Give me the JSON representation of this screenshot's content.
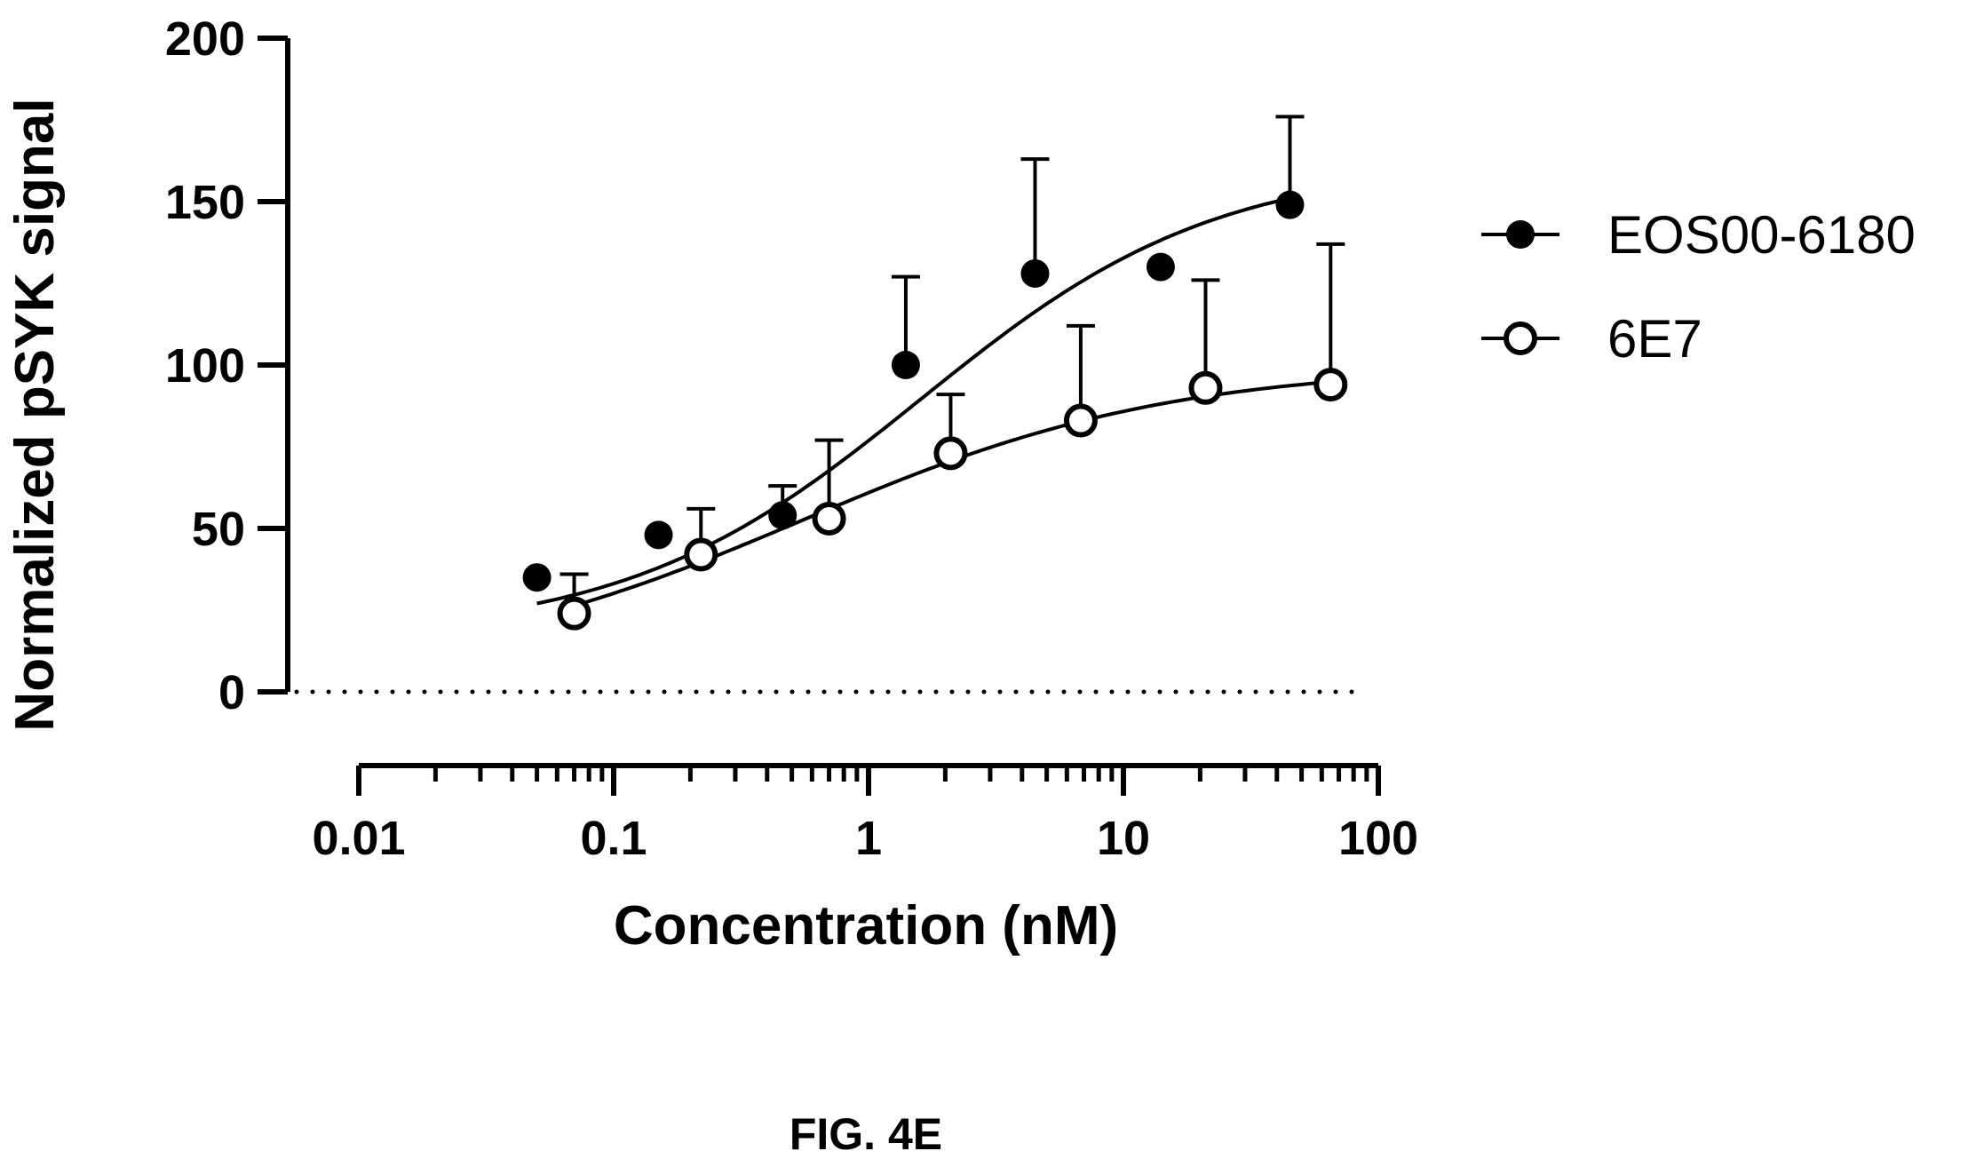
{
  "caption": "FIG. 4E",
  "chart_data": {
    "type": "scatter",
    "xscale": "log",
    "xlabel": "Concentration (nM)",
    "ylabel": "Normalized pSYK signal",
    "xlim": [
      0.01,
      100
    ],
    "ylim": [
      0,
      200
    ],
    "xticks": [
      {
        "value": 0.01,
        "label": "0.01"
      },
      {
        "value": 0.1,
        "label": "0.1"
      },
      {
        "value": 1,
        "label": "1"
      },
      {
        "value": 10,
        "label": "10"
      },
      {
        "value": 100,
        "label": "100"
      }
    ],
    "yticks": [
      {
        "value": 0,
        "label": "0"
      },
      {
        "value": 50,
        "label": "50"
      },
      {
        "value": 100,
        "label": "100"
      },
      {
        "value": 150,
        "label": "150"
      },
      {
        "value": 200,
        "label": "200"
      }
    ],
    "reference_line": {
      "y": 0,
      "style": "dotted"
    },
    "legend_position": "right",
    "series": [
      {
        "name": "EOS00-6180",
        "marker": "filled-circle",
        "color": "#000000",
        "x": [
          0.05,
          0.15,
          0.46,
          1.4,
          4.5,
          14,
          45
        ],
        "y": [
          35,
          48,
          54,
          100,
          128,
          130,
          149
        ],
        "error_upper": [
          null,
          null,
          63,
          127,
          163,
          null,
          176
        ],
        "fit": {
          "bottom": 17,
          "top": 162,
          "ec50": 1.6,
          "hill": 0.75,
          "x_range": [
            0.05,
            45
          ]
        }
      },
      {
        "name": "6E7",
        "marker": "open-circle",
        "color": "#000000",
        "x": [
          0.07,
          0.22,
          0.7,
          2.1,
          6.8,
          21,
          65
        ],
        "y": [
          24,
          42,
          53,
          73,
          83,
          93,
          94
        ],
        "error_upper": [
          36,
          56,
          77,
          91,
          112,
          126,
          137
        ],
        "fit": {
          "bottom": 5,
          "top": 100,
          "ec50": 0.55,
          "hill": 0.6,
          "x_range": [
            0.07,
            65
          ]
        }
      }
    ]
  }
}
